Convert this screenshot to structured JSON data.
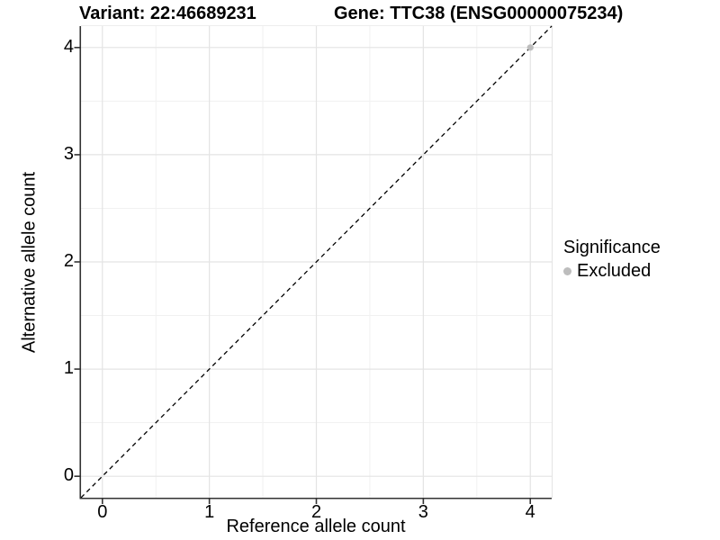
{
  "titles": {
    "variant": "Variant: 22:46689231",
    "gene": "Gene: TTC38 (ENSG00000075234)"
  },
  "axes": {
    "x_label": "Reference allele count",
    "y_label": "Alternative allele count"
  },
  "legend": {
    "title": "Significance",
    "items": [
      {
        "label": "Excluded",
        "color": "#bdbdbd"
      }
    ]
  },
  "colors": {
    "background": "#ffffff",
    "grid_major": "#e4e4e4",
    "grid_minor": "#f1f1f1",
    "axis_line": "#333333",
    "tick_mark": "#333333",
    "identity_line": "#000000",
    "point_excluded": "#bdbdbd",
    "text": "#000000"
  },
  "chart_data": {
    "type": "scatter",
    "title": "Variant: 22:46689231   Gene: TTC38 (ENSG00000075234)",
    "xlabel": "Reference allele count",
    "ylabel": "Alternative allele count",
    "xlim": [
      -0.2,
      4.2
    ],
    "ylim": [
      -0.2,
      4.2
    ],
    "x_ticks": [
      0,
      1,
      2,
      3,
      4
    ],
    "y_ticks": [
      0,
      1,
      2,
      3,
      4
    ],
    "x_minor_ticks": [
      0.5,
      1.5,
      2.5,
      3.5
    ],
    "y_minor_ticks": [
      0.5,
      1.5,
      2.5,
      3.5
    ],
    "grid": true,
    "legend_position": "right",
    "series": [
      {
        "name": "Excluded",
        "color": "#bdbdbd",
        "points": [
          [
            4,
            4
          ]
        ]
      }
    ],
    "reference_line": {
      "equation": "y = x",
      "style": "dashed",
      "color": "#000000"
    }
  }
}
